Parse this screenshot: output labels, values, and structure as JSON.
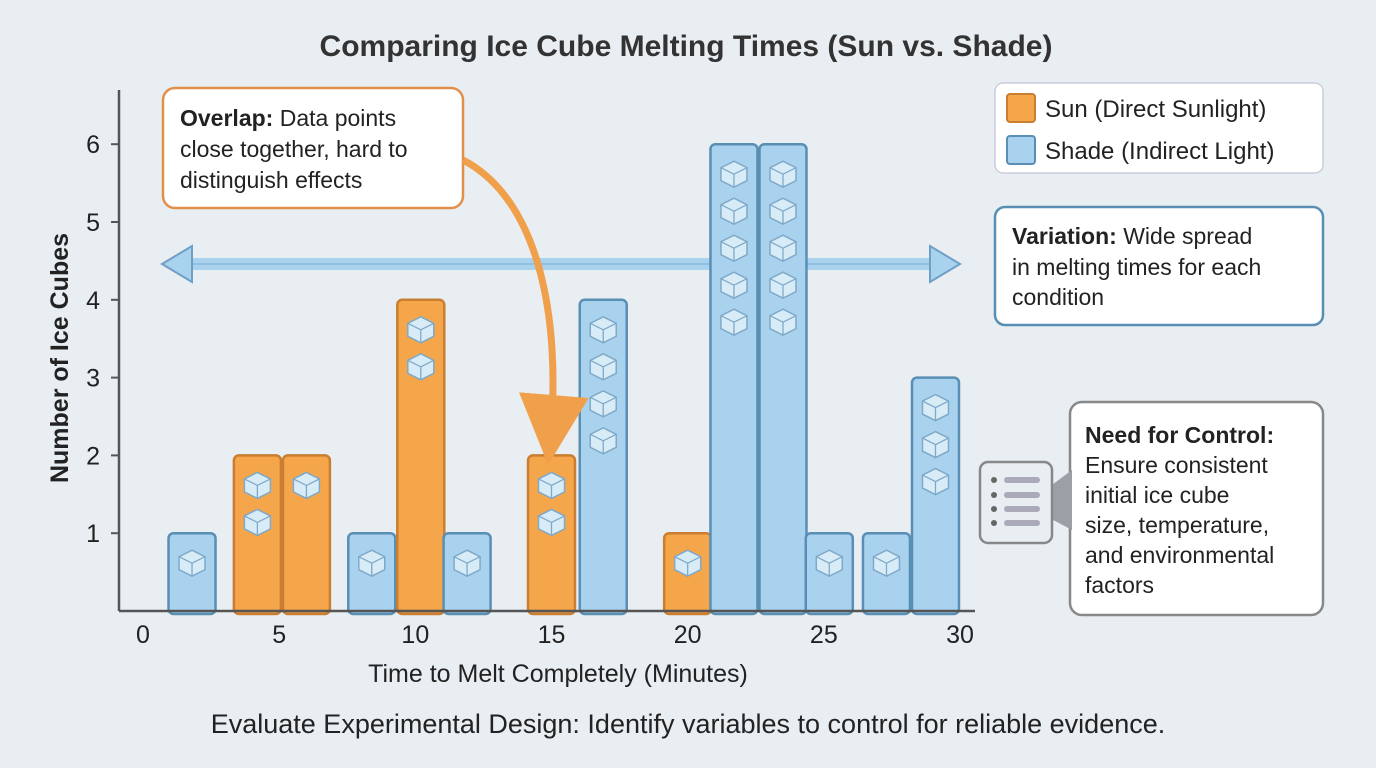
{
  "chart_data": {
    "type": "bar",
    "title": "Comparing Ice Cube Melting Times (Sun vs. Shade)",
    "xlabel": "Time to Melt Completely (Minutes)",
    "ylabel": "Number of Ice Cubes",
    "xlim": [
      0,
      30
    ],
    "ylim": [
      0,
      6.5
    ],
    "xticks": [
      "0",
      "5",
      "10",
      "15",
      "20",
      "25",
      "30"
    ],
    "yticks": [
      "1",
      "2",
      "3",
      "4",
      "5",
      "6"
    ],
    "grid": false,
    "legend_placement": "top-right",
    "colors": {
      "sun": "#f5a54a",
      "shade": "#a9d2ee"
    },
    "legend": [
      {
        "series": "sun",
        "label": "Sun (Direct Sunlight)"
      },
      {
        "series": "shade",
        "label": "Shade (Indirect Light)"
      }
    ],
    "bars": [
      {
        "series": "shade",
        "x": 1.8,
        "value": 1,
        "icons": 1
      },
      {
        "series": "sun",
        "x": 4.2,
        "value": 2,
        "icons": 2
      },
      {
        "series": "sun",
        "x": 6.0,
        "value": 2,
        "icons": 1
      },
      {
        "series": "shade",
        "x": 8.4,
        "value": 1,
        "icons": 1
      },
      {
        "series": "sun",
        "x": 10.2,
        "value": 4,
        "icons": 2
      },
      {
        "series": "shade",
        "x": 11.9,
        "value": 1,
        "icons": 1
      },
      {
        "series": "sun",
        "x": 15.0,
        "value": 2,
        "icons": 2
      },
      {
        "series": "shade",
        "x": 16.9,
        "value": 4,
        "icons": 4
      },
      {
        "series": "sun",
        "x": 20.0,
        "value": 1,
        "icons": 1
      },
      {
        "series": "shade",
        "x": 21.7,
        "value": 6,
        "icons": 5
      },
      {
        "series": "shade",
        "x": 23.5,
        "value": 6,
        "icons": 5
      },
      {
        "series": "shade",
        "x": 25.2,
        "value": 1,
        "icons": 1
      },
      {
        "series": "shade",
        "x": 27.3,
        "value": 1,
        "icons": 1
      },
      {
        "series": "shade",
        "x": 29.1,
        "value": 3,
        "icons": 3
      }
    ],
    "annotations": {
      "overlap": {
        "head": "Overlap:",
        "lines": [
          " Data points",
          "close together, hard to",
          "distinguish effects"
        ]
      },
      "variation": {
        "head": "Variation:",
        "lines": [
          " Wide spread",
          "in melting times for each",
          "condition"
        ]
      },
      "control": {
        "head": "Need for Control:",
        "lines": [
          "Ensure consistent",
          "initial ice cube",
          "size, temperature,",
          "and environmental",
          "factors"
        ]
      }
    },
    "footer": "Evaluate Experimental Design: Identify variables to control for reliable evidence."
  }
}
